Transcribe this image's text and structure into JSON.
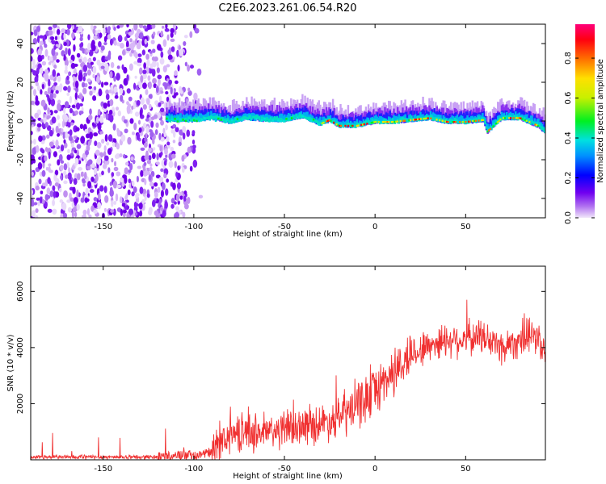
{
  "title": "C2E6.2023.261.06.54.R20",
  "chart_data": [
    {
      "type": "heatmap",
      "xlabel": "Height of straight line (km)",
      "ylabel": "Frequency (Hz)",
      "xlim": [
        -190,
        94
      ],
      "ylim": [
        -50,
        50
      ],
      "xticks": [
        -150,
        -100,
        -50,
        0,
        50
      ],
      "yticks": [
        -40,
        -20,
        0,
        20,
        40
      ],
      "colorbar": {
        "label": "Normalized spectral amplitude",
        "range": [
          0.0,
          0.97
        ],
        "ticks": [
          0.0,
          0.2,
          0.4,
          0.6,
          0.8
        ]
      },
      "ridge": {
        "x": [
          -115,
          -100,
          -90,
          -80,
          -70,
          -60,
          -50,
          -40,
          -30,
          -25,
          -20,
          -10,
          0,
          10,
          20,
          30,
          40,
          50,
          60,
          62,
          70,
          80,
          90,
          94
        ],
        "y": [
          0,
          0,
          1,
          -1,
          1,
          0,
          0,
          2,
          -2,
          0,
          -3,
          -3,
          -1,
          -1,
          0,
          1,
          -1,
          -1,
          0,
          -6,
          1,
          1,
          -3,
          -6
        ]
      },
      "noise_region_x": [
        -190,
        -95
      ],
      "grid": false
    },
    {
      "type": "line",
      "xlabel": "Height of straight line (km)",
      "ylabel": "SNR (10 * v/v)",
      "xlim": [
        -190,
        94
      ],
      "ylim": [
        0,
        6900
      ],
      "xticks": [
        -150,
        -100,
        -50,
        0,
        50
      ],
      "yticks": [
        2000,
        4000,
        6000
      ],
      "color": "#f03030",
      "envelope": {
        "x": [
          -190,
          -150,
          -120,
          -110,
          -100,
          -90,
          -85,
          -80,
          -70,
          -60,
          -50,
          -40,
          -30,
          -20,
          -10,
          0,
          5,
          10,
          15,
          20,
          25,
          30,
          40,
          50,
          60,
          65,
          70,
          80,
          90,
          94
        ],
        "y": [
          100,
          100,
          100,
          150,
          180,
          250,
          700,
          900,
          1000,
          950,
          1100,
          1200,
          1300,
          1500,
          1900,
          2500,
          2800,
          3100,
          3400,
          3800,
          3900,
          4100,
          4300,
          4300,
          4400,
          4200,
          4000,
          4300,
          4400,
          3600
        ]
      },
      "grid": false
    }
  ]
}
